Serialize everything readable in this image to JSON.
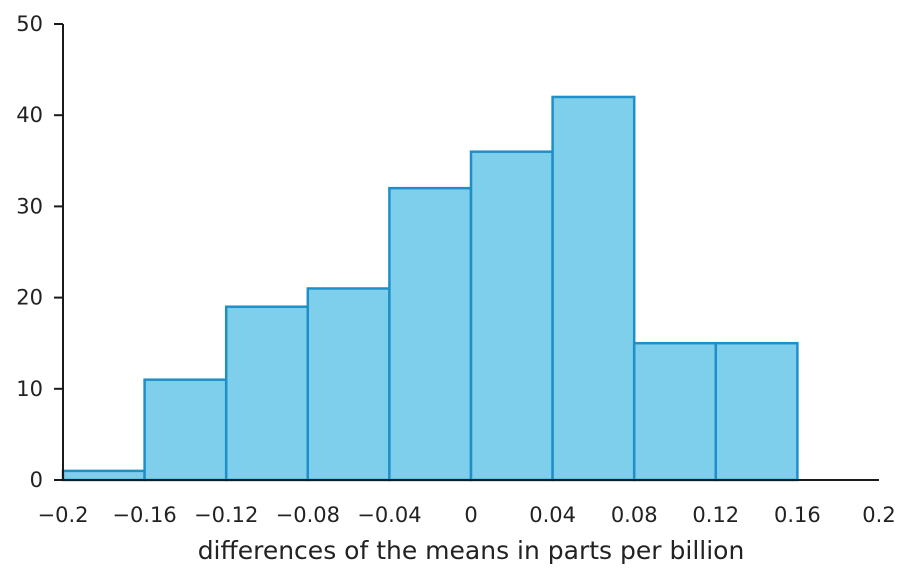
{
  "chart_data": {
    "type": "bar",
    "title": "",
    "xlabel": "differences of the means in parts per billion",
    "ylabel": "",
    "xlim": [
      -0.2,
      0.2
    ],
    "ylim": [
      0,
      50
    ],
    "grid": false,
    "bin_edges": [
      -0.2,
      -0.16,
      -0.12,
      -0.08,
      -0.04,
      0,
      0.04,
      0.08,
      0.12,
      0.16
    ],
    "values": [
      1,
      11,
      19,
      21,
      32,
      36,
      42,
      15,
      15
    ],
    "x_ticks": [
      -0.2,
      -0.16,
      -0.12,
      -0.08,
      -0.04,
      0,
      0.04,
      0.08,
      0.12,
      0.16,
      0.2
    ],
    "x_tick_labels": [
      "−0.2",
      "−0.16",
      "−0.12",
      "−0.08",
      "−0.04",
      "0",
      "0.04",
      "0.08",
      "0.12",
      "0.16",
      "0.2"
    ],
    "y_ticks": [
      0,
      10,
      20,
      30,
      40,
      50
    ],
    "y_tick_labels": [
      "0",
      "10",
      "20",
      "30",
      "40",
      "50"
    ],
    "colors": {
      "bar_fill": "#7ecfec",
      "bar_stroke": "#1f8fc8",
      "axis": "#1a1a1a"
    }
  }
}
